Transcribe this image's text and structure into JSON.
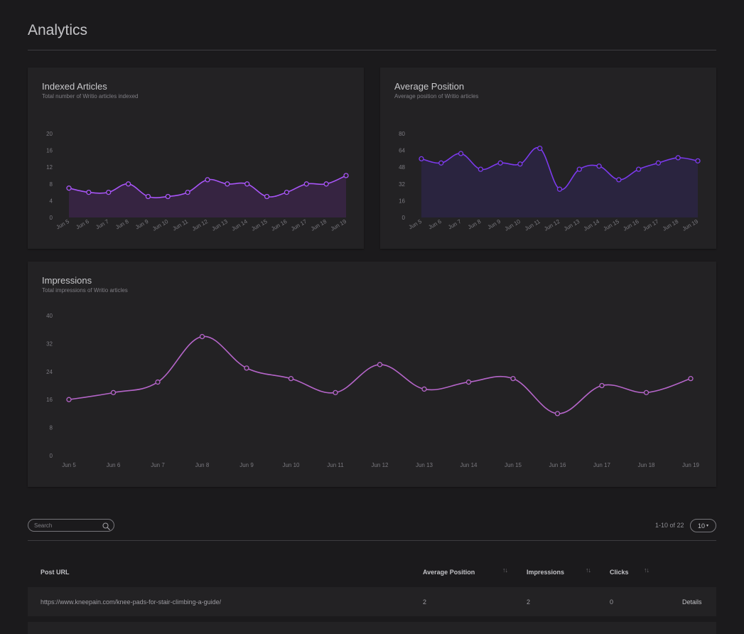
{
  "page": {
    "title": "Analytics"
  },
  "cards": {
    "indexed": {
      "title": "Indexed Articles",
      "subtitle": "Total number of Writio articles indexed"
    },
    "position": {
      "title": "Average Position",
      "subtitle": "Average position of Writio articles"
    },
    "impressions": {
      "title": "Impressions",
      "subtitle": "Total impressions of Writio articles"
    }
  },
  "chart_data": [
    {
      "type": "area",
      "title": "Indexed Articles",
      "categories": [
        "Jun 5",
        "Jun 6",
        "Jun 7",
        "Jun 8",
        "Jun 9",
        "Jun 10",
        "Jun 11",
        "Jun 12",
        "Jun 13",
        "Jun 14",
        "Jun 15",
        "Jun 16",
        "Jun 17",
        "Jun 18",
        "Jun 19"
      ],
      "values": [
        7,
        6,
        6,
        8,
        5,
        5,
        6,
        9,
        8,
        8,
        5,
        6,
        8,
        8,
        10
      ],
      "ylim": [
        0,
        20
      ],
      "yticks": [
        0,
        4,
        8,
        12,
        16,
        20
      ],
      "color": "#a855f7"
    },
    {
      "type": "area",
      "title": "Average Position",
      "categories": [
        "Jun 5",
        "Jun 6",
        "Jun 7",
        "Jun 8",
        "Jun 9",
        "Jun 10",
        "Jun 11",
        "Jun 12",
        "Jun 13",
        "Jun 14",
        "Jun 15",
        "Jun 16",
        "Jun 17",
        "Jun 18",
        "Jun 19"
      ],
      "values": [
        56,
        52,
        61,
        46,
        52,
        51,
        66,
        27,
        46,
        49,
        36,
        46,
        52,
        57,
        54
      ],
      "ylim": [
        0,
        80
      ],
      "yticks": [
        0,
        16,
        32,
        48,
        64,
        80
      ],
      "color": "#7c3aed"
    },
    {
      "type": "line",
      "title": "Impressions",
      "categories": [
        "Jun 5",
        "Jun 6",
        "Jun 7",
        "Jun 8",
        "Jun 9",
        "Jun 10",
        "Jun 11",
        "Jun 12",
        "Jun 13",
        "Jun 14",
        "Jun 15",
        "Jun 16",
        "Jun 17",
        "Jun 18",
        "Jun 19"
      ],
      "values": [
        16,
        18,
        21,
        34,
        25,
        22,
        18,
        26,
        19,
        21,
        22,
        12,
        20,
        18,
        22
      ],
      "ylim": [
        0,
        40
      ],
      "yticks": [
        0,
        8,
        16,
        24,
        32,
        40
      ],
      "color": "#b565c9"
    }
  ],
  "table": {
    "search_placeholder": "Search",
    "pager_text": "1-10 of 22",
    "page_size": "10",
    "columns": [
      "Post URL",
      "Average Position",
      "Impressions",
      "Clicks"
    ],
    "rows": [
      {
        "url": "https://www.kneepain.com/knee-pads-for-stair-climbing-a-guide/",
        "position": "2",
        "impressions": "2",
        "clicks": "0",
        "action": "Details"
      }
    ]
  },
  "icons": {
    "search": "search-icon",
    "sort": "sort-icon",
    "caret": "caret-down-icon"
  }
}
